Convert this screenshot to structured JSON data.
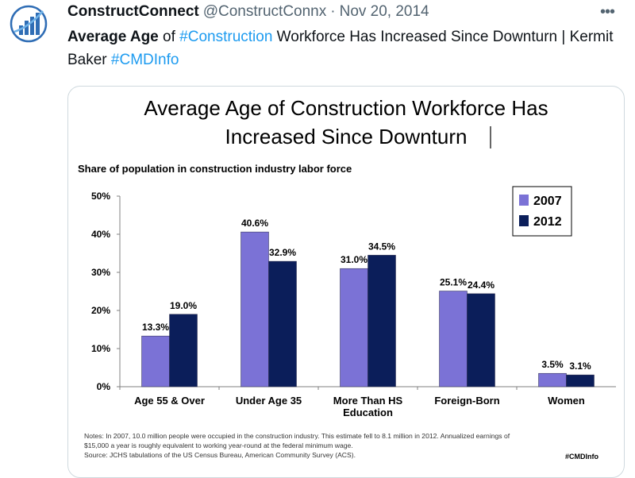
{
  "tweet": {
    "display_name": "ConstructConnect",
    "handle": "@ConstructConnx",
    "separator": "·",
    "date": "Nov 20, 2014",
    "more_label": "•••",
    "text": {
      "headline": "Average Age",
      "part1": " of ",
      "hashtag1": "#Construction",
      "part2": " Workforce Has Increased Since Downturn | Kermit Baker ",
      "hashtag2": "#CMDInfo"
    },
    "avatar_icon": "constructconnect-logo-icon"
  },
  "colors": {
    "series_2007": "#7b72d6",
    "series_2012": "#0b1e5a",
    "link": "#1d9bf0"
  },
  "chart_data": {
    "type": "bar",
    "title_line1": "Average Age of Construction Workforce Has",
    "title_line2": "Increased Since Downturn",
    "subtitle": "Share of population in construction industry labor force",
    "categories": [
      [
        "Age 55 & Over"
      ],
      [
        "Under Age 35"
      ],
      [
        "More Than HS",
        "Education"
      ],
      [
        "Foreign-Born"
      ],
      [
        "Women"
      ]
    ],
    "series": [
      {
        "name": "2007",
        "values": [
          13.3,
          40.6,
          31.0,
          25.1,
          3.5
        ],
        "labels": [
          "13.3%",
          "40.6%",
          "31.0%",
          "25.1%",
          "3.5%"
        ]
      },
      {
        "name": "2012",
        "values": [
          19.0,
          32.9,
          34.5,
          24.4,
          3.1
        ],
        "labels": [
          "19.0%",
          "32.9%",
          "34.5%",
          "24.4%",
          "3.1%"
        ]
      }
    ],
    "ylim": [
      0,
      50
    ],
    "yticks": [
      "0%",
      "10%",
      "20%",
      "30%",
      "40%",
      "50%"
    ],
    "legend_position": "top-right",
    "notes": [
      "Notes: In 2007, 10.0 million people were occupied in the construction industry. This estimate fell to 8.1 million in 2012. Annualized earnings of",
      "$15,000 a year is roughly equivalent to working year-round at the federal minimum wage.",
      "Source: JCHS tabulations of the US Census Bureau, American Community Survey (ACS)."
    ],
    "footer_tag": "#CMDInfo"
  }
}
